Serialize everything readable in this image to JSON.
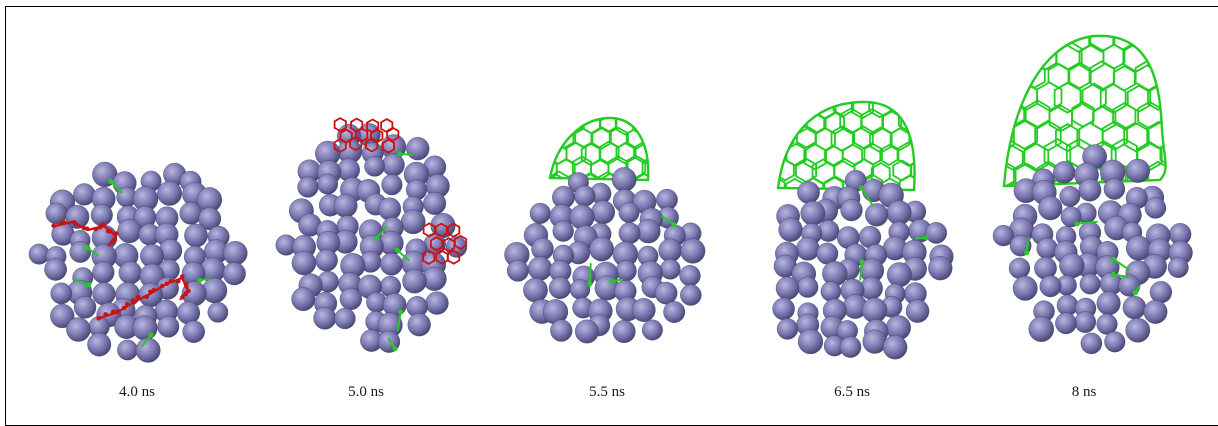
{
  "figure": {
    "frames": [
      {
        "label": "4.0 ns",
        "stage": "cluster-with-two-red-strands"
      },
      {
        "label": "5.0 ns",
        "stage": "cluster-with-red-patches"
      },
      {
        "label": "5.5 ns",
        "stage": "small-green-cap"
      },
      {
        "label": "6.5 ns",
        "stage": "larger-green-cap"
      },
      {
        "label": "8 ns",
        "stage": "tall-green-cap"
      }
    ],
    "colors": {
      "atom_fill": "#7a78b0",
      "atom_highlight": "#b8b6e0",
      "atom_shadow": "#44426e",
      "carbon_green": "#22cc22",
      "carbon_red": "#cc1111",
      "frame_border": "#000000"
    }
  }
}
